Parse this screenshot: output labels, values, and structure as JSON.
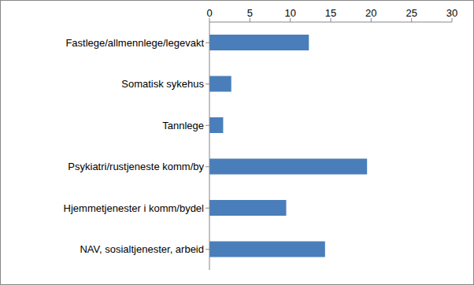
{
  "chart_data": {
    "type": "bar",
    "orientation": "horizontal",
    "categories": [
      "Fastlege/allmennlege/legevakt",
      "Somatisk sykehus",
      "Tannlege",
      "Psykiatri/rustjeneste komm/by",
      "Hjemmetjenester i komm/bydel",
      "NAV, sosialtjenester, arbeid"
    ],
    "values": [
      12.3,
      2.7,
      1.7,
      19.5,
      9.5,
      14.3
    ],
    "color": "#4a7ebb",
    "xlim": [
      0,
      30
    ],
    "xticks": [
      0,
      5,
      10,
      15,
      20,
      25,
      30
    ],
    "grid": false
  }
}
